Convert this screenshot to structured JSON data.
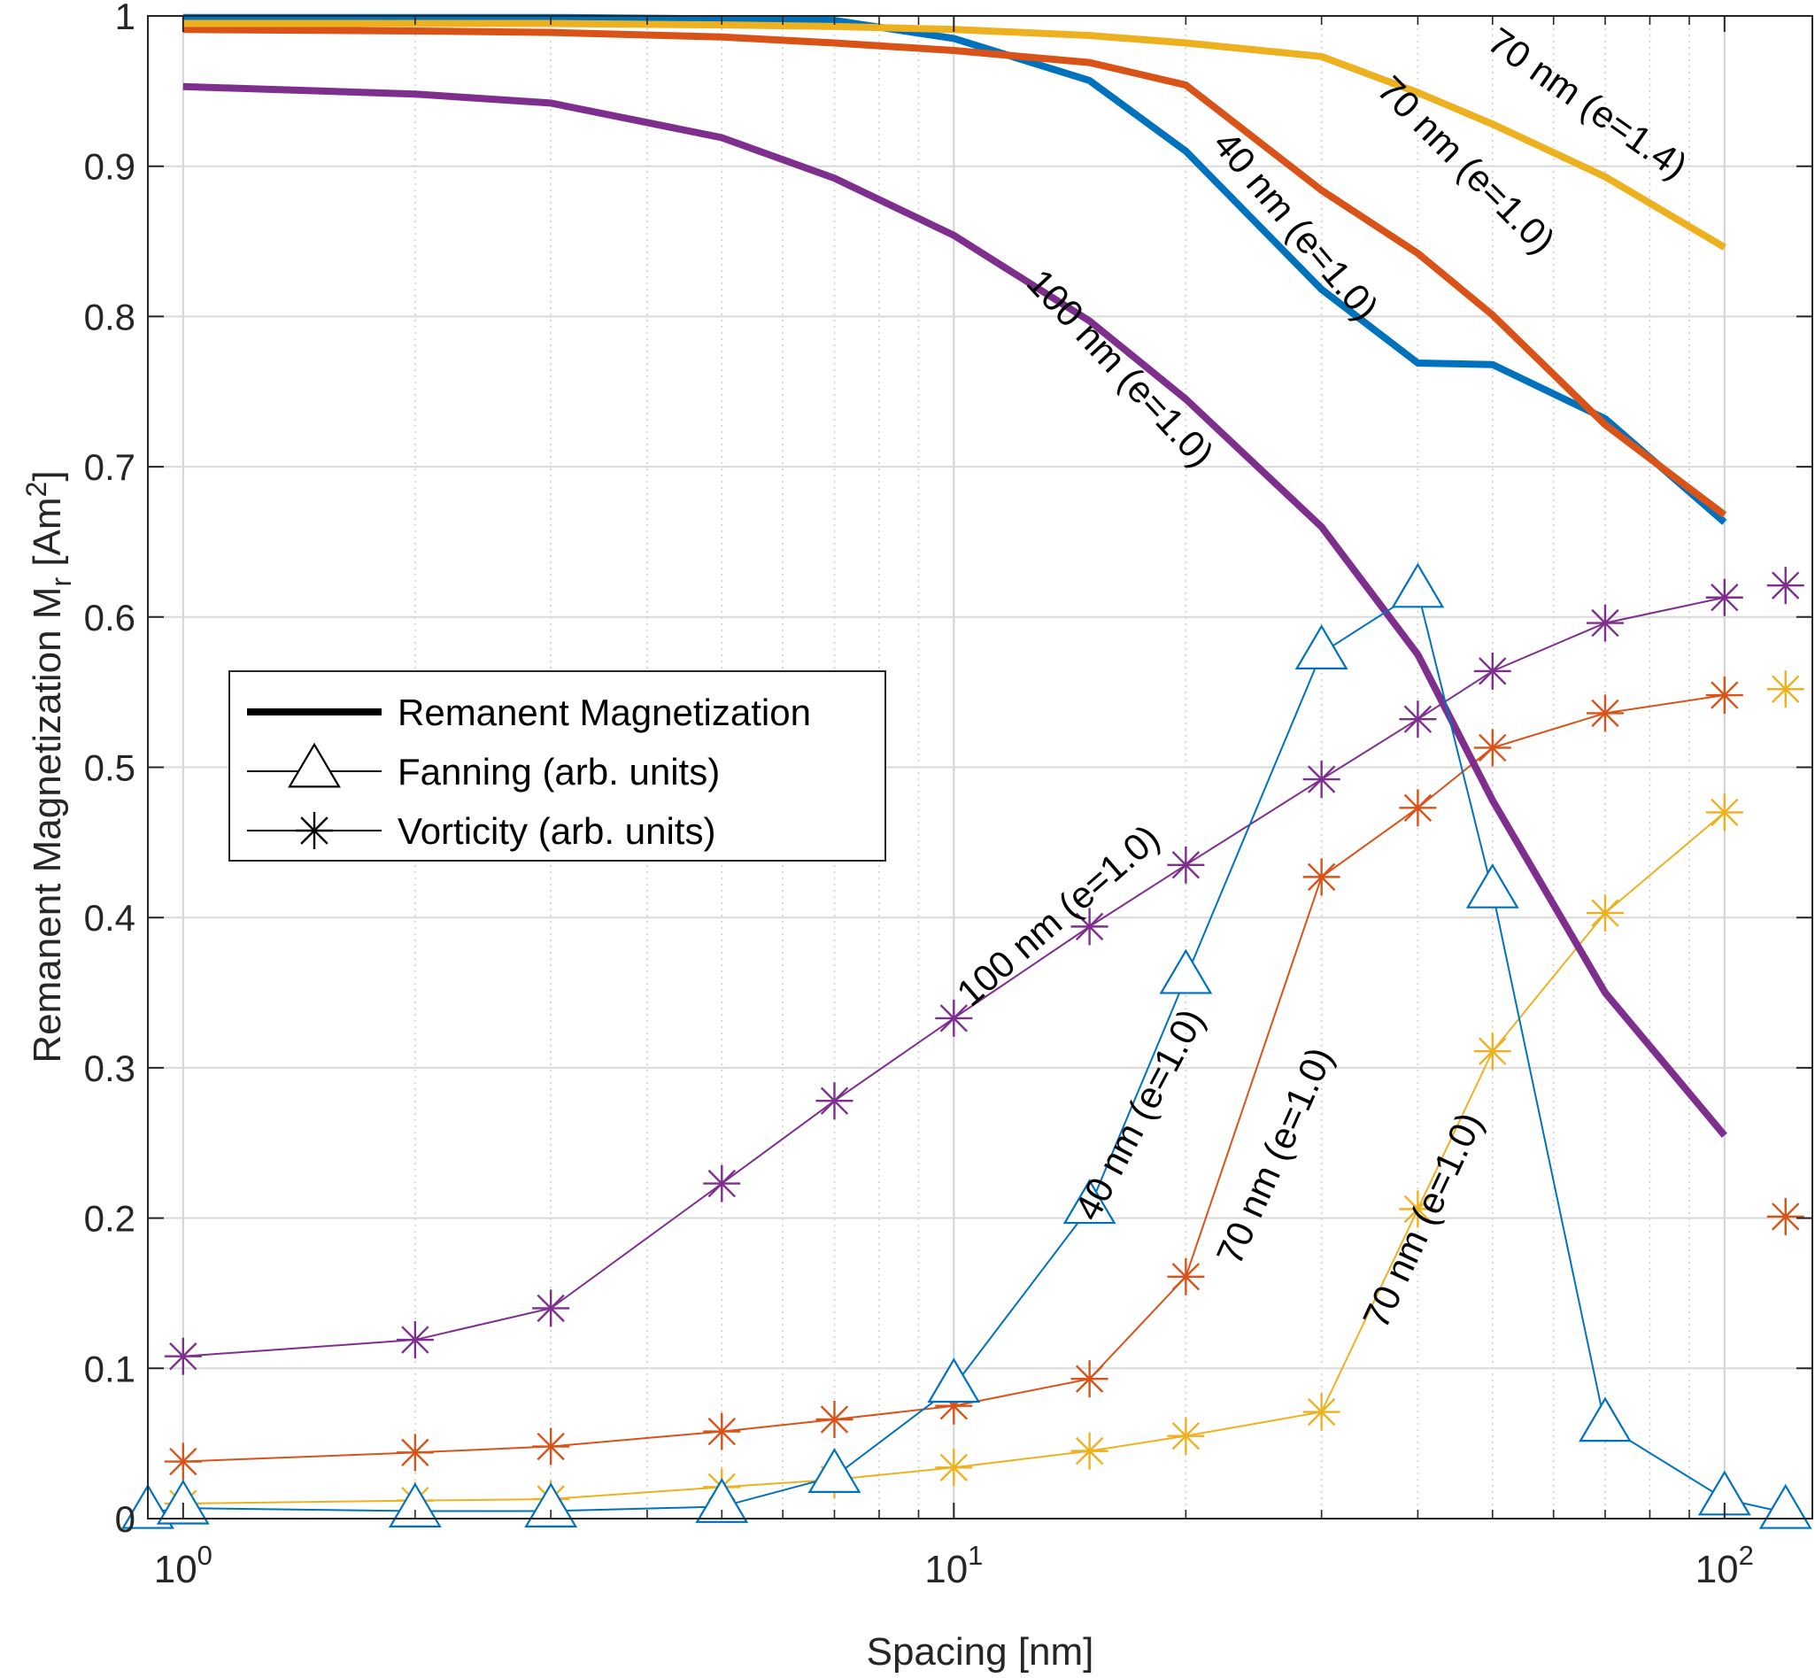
{
  "chart_data": {
    "type": "line",
    "xscale": "log",
    "xlim": [
      0.9,
      130
    ],
    "ylim": [
      0,
      1
    ],
    "grid": true,
    "xlabel": "Spacing [nm]",
    "ylabel": "Remanent Magnetization M",
    "ylabel_sub": "r",
    "ylabel_unit_open": " [Am",
    "ylabel_unit_sup": "2",
    "ylabel_unit_close": "]",
    "x_tick_labels": [
      {
        "base": "10",
        "exp": "0",
        "value": 1
      },
      {
        "base": "10",
        "exp": "1",
        "value": 10
      },
      {
        "base": "10",
        "exp": "2",
        "value": 100
      }
    ],
    "y_ticks": [
      {
        "label": "0",
        "value": 0
      },
      {
        "label": "0.1",
        "value": 0.1
      },
      {
        "label": "0.2",
        "value": 0.2
      },
      {
        "label": "0.3",
        "value": 0.3
      },
      {
        "label": "0.4",
        "value": 0.4
      },
      {
        "label": "0.5",
        "value": 0.5
      },
      {
        "label": "0.6",
        "value": 0.6
      },
      {
        "label": "0.7",
        "value": 0.7
      },
      {
        "label": "0.8",
        "value": 0.8
      },
      {
        "label": "0.9",
        "value": 0.9
      },
      {
        "label": "1",
        "value": 1
      }
    ],
    "colors": {
      "blue": "#0072BD",
      "orange": "#D95319",
      "yellow": "#EDB120",
      "purple": "#7E2F8E"
    },
    "legend": {
      "position": "center-left",
      "entries": [
        {
          "label": "Remanent Magnetization",
          "style": "thick-line"
        },
        {
          "label": "Fanning (arb. units)",
          "style": "triangle"
        },
        {
          "label": "Vorticity (arb. units)",
          "style": "asterisk"
        }
      ]
    },
    "remanent_series": [
      {
        "color": "blue",
        "x": [
          1,
          2,
          3,
          5,
          7,
          10,
          15,
          20,
          30,
          40,
          50,
          70,
          100
        ],
        "y": [
          0.999,
          0.999,
          0.999,
          0.998,
          0.997,
          0.985,
          0.957,
          0.91,
          0.818,
          0.769,
          0.768,
          0.732,
          0.663
        ]
      },
      {
        "color": "orange",
        "x": [
          1,
          2,
          3,
          5,
          7,
          10,
          15,
          20,
          30,
          40,
          50,
          70,
          100
        ],
        "y": [
          0.991,
          0.99,
          0.989,
          0.986,
          0.982,
          0.977,
          0.969,
          0.954,
          0.884,
          0.842,
          0.801,
          0.728,
          0.668
        ]
      },
      {
        "color": "yellow",
        "x": [
          1,
          2,
          3,
          5,
          7,
          10,
          15,
          20,
          30,
          40,
          50,
          70,
          100
        ],
        "y": [
          0.995,
          0.995,
          0.995,
          0.994,
          0.993,
          0.991,
          0.987,
          0.982,
          0.973,
          0.949,
          0.928,
          0.893,
          0.846
        ]
      },
      {
        "color": "purple",
        "x": [
          1,
          2,
          3,
          5,
          7,
          10,
          15,
          20,
          30,
          40,
          50,
          70,
          100
        ],
        "y": [
          0.953,
          0.948,
          0.942,
          0.919,
          0.892,
          0.854,
          0.797,
          0.745,
          0.66,
          0.575,
          0.478,
          0.35,
          0.255
        ]
      }
    ],
    "fanning_series": [
      {
        "color": "blue",
        "x": [
          0.9,
          1,
          2,
          3,
          5,
          7,
          10,
          15,
          20,
          30,
          40,
          50,
          70,
          100,
          120
        ],
        "y": [
          0.004,
          0.007,
          0.005,
          0.005,
          0.008,
          0.028,
          0.088,
          0.207,
          0.36,
          0.576,
          0.617,
          0.417,
          0.062,
          0.013,
          0.004
        ]
      }
    ],
    "vorticity_series": [
      {
        "color": "purple",
        "x": [
          1,
          2,
          3,
          5,
          7,
          10,
          15,
          20,
          30,
          40,
          50,
          70,
          100
        ],
        "y": [
          0.108,
          0.119,
          0.14,
          0.223,
          0.278,
          0.333,
          0.394,
          0.435,
          0.492,
          0.532,
          0.564,
          0.596,
          0.613
        ]
      },
      {
        "color": "orange",
        "x": [
          1,
          2,
          3,
          5,
          7,
          10,
          15,
          20,
          30,
          40,
          50,
          70,
          100
        ],
        "y": [
          0.038,
          0.044,
          0.048,
          0.058,
          0.066,
          0.075,
          0.093,
          0.161,
          0.427,
          0.473,
          0.513,
          0.536,
          0.548
        ]
      },
      {
        "color": "yellow",
        "x": [
          1,
          2,
          3,
          5,
          7,
          10,
          15,
          20,
          30,
          40,
          50,
          70,
          100
        ],
        "y": [
          0.01,
          0.012,
          0.013,
          0.021,
          0.026,
          0.034,
          0.045,
          0.055,
          0.071,
          0.206,
          0.311,
          0.403,
          0.47
        ]
      }
    ],
    "vorticity_extra_markers": [
      {
        "color": "purple",
        "x": 120,
        "y": 0.621
      },
      {
        "color": "yellow",
        "x": 120,
        "y": 0.552
      },
      {
        "color": "orange",
        "x": 120,
        "y": 0.201
      }
    ],
    "annotations": [
      {
        "text": "70 nm (e=1.4)",
        "x": 65,
        "y": 0.935,
        "angle": 35
      },
      {
        "text": "70 nm (e=1.0)",
        "x": 45,
        "y": 0.895,
        "angle": 45
      },
      {
        "text": "40 nm (e=1.0)",
        "x": 27,
        "y": 0.855,
        "angle": 50
      },
      {
        "text": "100 nm (e=1.0)",
        "x": 16,
        "y": 0.76,
        "angle": 47
      },
      {
        "text": "100 nm (e=1.0)",
        "x": 14,
        "y": 0.395,
        "angle": -41
      },
      {
        "text": "40 nm (e=1.0)",
        "x": 18,
        "y": 0.265,
        "angle": -62
      },
      {
        "text": "70 nm (e=1.0)",
        "x": 27,
        "y": 0.238,
        "angle": -66
      },
      {
        "text": "70 nm (e=1.0)",
        "x": 42,
        "y": 0.195,
        "angle": -65
      }
    ]
  }
}
